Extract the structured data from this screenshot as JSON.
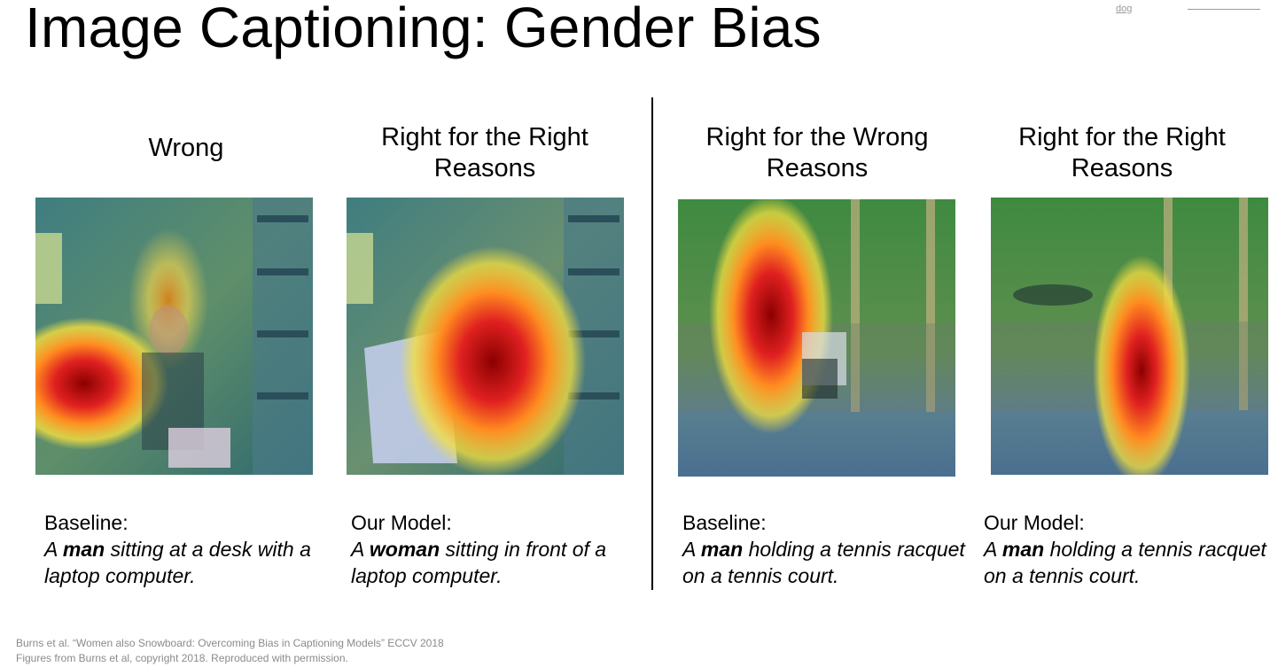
{
  "slide": {
    "title": "Image Captioning: Gender Bias",
    "corner_link": "dog"
  },
  "panels": [
    {
      "heading": "Wrong",
      "caption_label": "Baseline:",
      "caption_pre": "A ",
      "caption_bold": "man",
      "caption_post": " sitting at a desk with a laptop computer."
    },
    {
      "heading": "Right for the Right Reasons",
      "caption_label": "Our Model:",
      "caption_pre": "A ",
      "caption_bold": "woman",
      "caption_post": " sitting in front of a laptop computer."
    },
    {
      "heading": "Right for the Wrong Reasons",
      "caption_label": "Baseline:",
      "caption_pre": "A ",
      "caption_bold": "man",
      "caption_post": " holding a tennis racquet on a tennis court."
    },
    {
      "heading": "Right for the Right Reasons",
      "caption_label": "Our Model:",
      "caption_pre": "A ",
      "caption_bold": "man",
      "caption_post": " holding a tennis racquet on a tennis court."
    }
  ],
  "citation": {
    "line1": "Burns et al. “Women also Snowboard: Overcoming Bias in Captioning Models” ECCV 2018",
    "line2": "Figures from Burns et al, copyright 2018. Reproduced with permission."
  }
}
